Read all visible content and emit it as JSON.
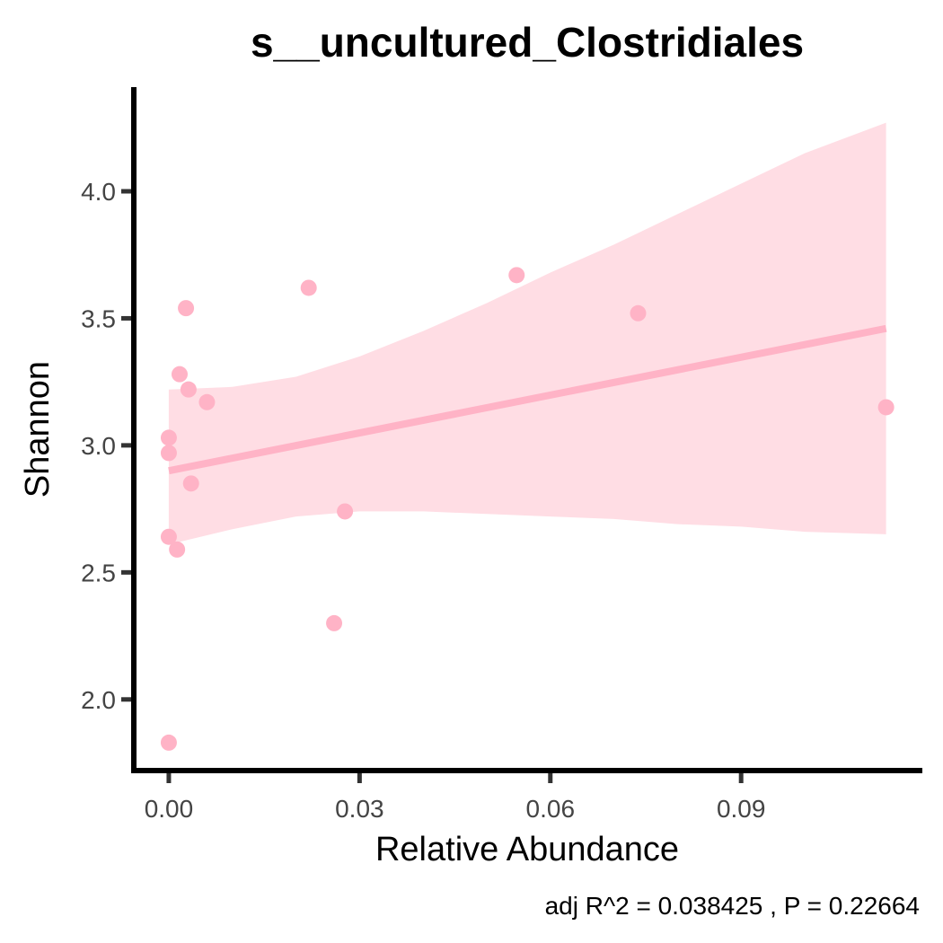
{
  "chart_data": {
    "type": "scatter",
    "title": "s__uncultured_Clostridiales",
    "xlabel": "Relative Abundance",
    "ylabel": "Shannon",
    "caption": "adj R^2 =  0.038425 , P = 0.22664",
    "xlim": [
      -0.0055,
      0.1185
    ],
    "ylim": [
      1.72,
      4.41
    ],
    "x_ticks": [
      0.0,
      0.03,
      0.06,
      0.09
    ],
    "x_tick_labels": [
      "0.00",
      "0.03",
      "0.06",
      "0.09"
    ],
    "y_ticks": [
      2.0,
      2.5,
      3.0,
      3.5,
      4.0
    ],
    "y_tick_labels": [
      "2.0",
      "2.5",
      "3.0",
      "3.5",
      "4.0"
    ],
    "grid": false,
    "legend": "none",
    "colors": {
      "points": "#ffb3c6",
      "fit_line": "#ffb3c6",
      "ribbon": "#ffdde4",
      "axis": "#000000",
      "ticks": "#333333"
    },
    "points": [
      {
        "x": 0.0,
        "y": 3.03
      },
      {
        "x": 0.0,
        "y": 2.97
      },
      {
        "x": 0.0,
        "y": 2.64
      },
      {
        "x": 0.0,
        "y": 1.83
      },
      {
        "x": 0.0013,
        "y": 2.59
      },
      {
        "x": 0.0017,
        "y": 3.28
      },
      {
        "x": 0.0027,
        "y": 3.54
      },
      {
        "x": 0.0031,
        "y": 3.22
      },
      {
        "x": 0.0035,
        "y": 2.85
      },
      {
        "x": 0.006,
        "y": 3.17
      },
      {
        "x": 0.022,
        "y": 3.62
      },
      {
        "x": 0.026,
        "y": 2.3
      },
      {
        "x": 0.0277,
        "y": 2.74
      },
      {
        "x": 0.0547,
        "y": 3.67
      },
      {
        "x": 0.0738,
        "y": 3.52
      },
      {
        "x": 0.1128,
        "y": 3.15
      }
    ],
    "fit": {
      "x": [
        0.0,
        0.1128
      ],
      "y": [
        2.9,
        3.46
      ]
    },
    "ribbon": {
      "x": [
        0.0,
        0.01,
        0.02,
        0.03,
        0.04,
        0.05,
        0.06,
        0.07,
        0.08,
        0.09,
        0.1,
        0.1128
      ],
      "upper": [
        3.22,
        3.23,
        3.27,
        3.35,
        3.45,
        3.56,
        3.68,
        3.79,
        3.91,
        4.03,
        4.15,
        4.27
      ],
      "lower": [
        2.61,
        2.67,
        2.72,
        2.74,
        2.74,
        2.73,
        2.72,
        2.71,
        2.69,
        2.68,
        2.66,
        2.65
      ]
    }
  }
}
